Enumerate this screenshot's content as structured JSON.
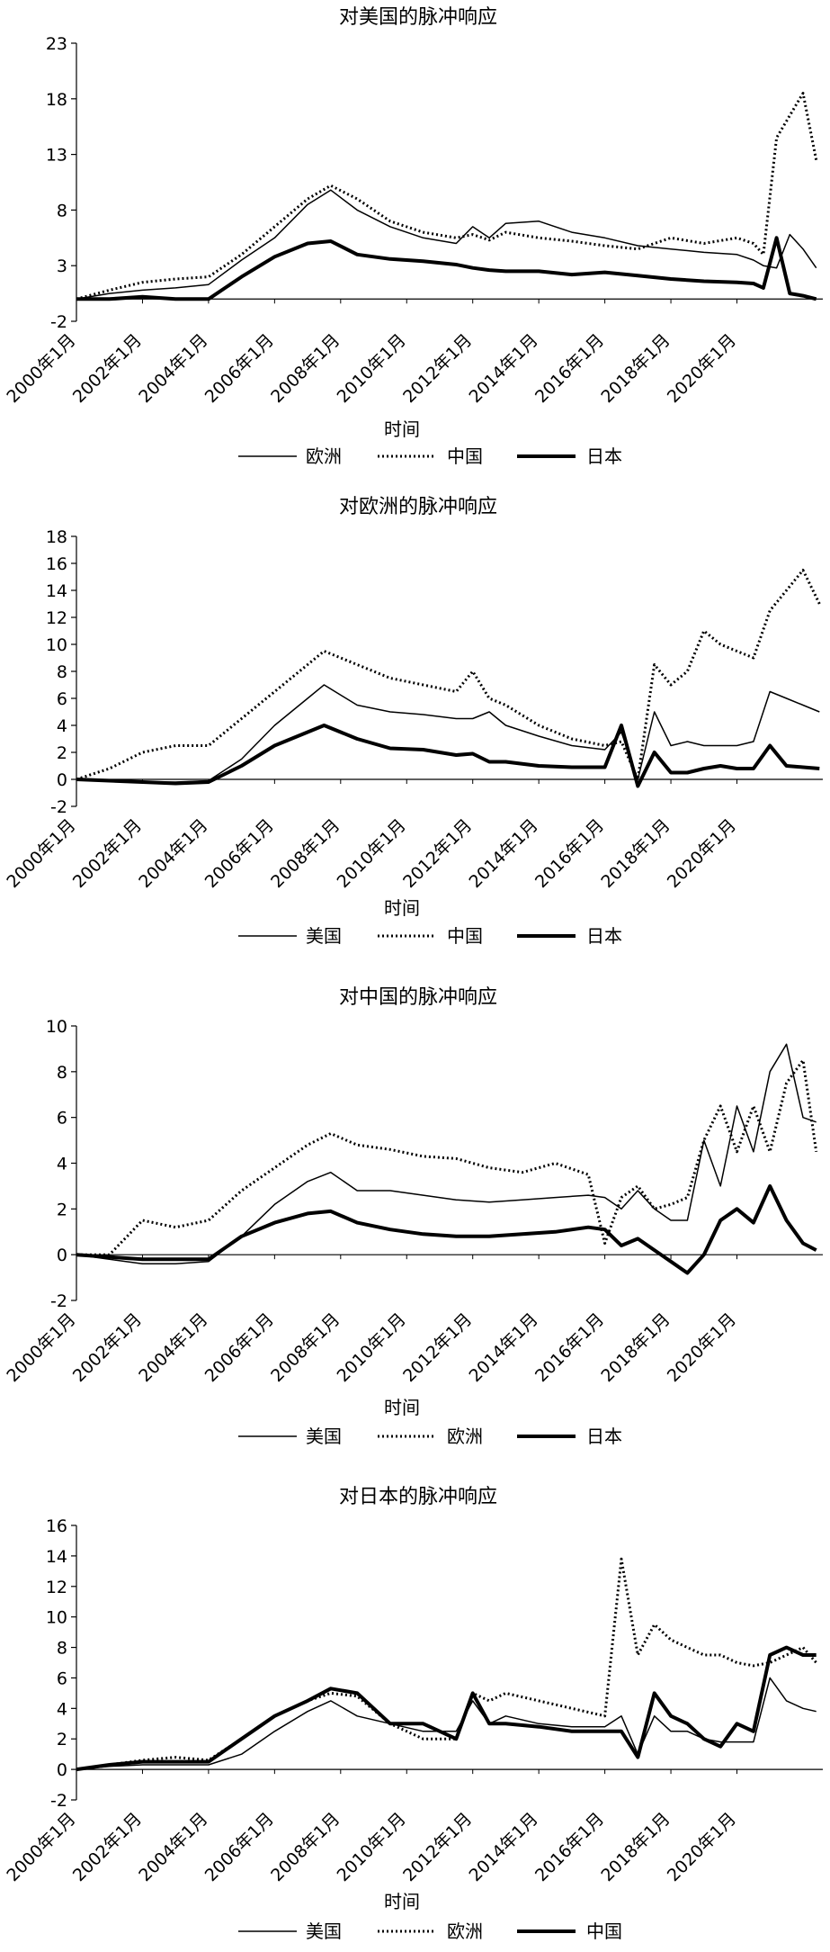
{
  "xaxis_ticks": [
    "2000年1月",
    "2002年1月",
    "2004年1月",
    "2006年1月",
    "2008年1月",
    "2010年1月",
    "2012年1月",
    "2014年1月",
    "2016年1月",
    "2018年1月",
    "2020年1月"
  ],
  "xlabel": "时间",
  "colors": {
    "line": "#000000"
  },
  "chart_data": [
    {
      "type": "line",
      "title": "对美国的脉冲响应",
      "xlabel": "时间",
      "ylabel": "",
      "ylim": [
        -2,
        23
      ],
      "yticks": [
        -2,
        3,
        8,
        13,
        18,
        23
      ],
      "grid": false,
      "legend": "bottom",
      "x": [
        2000.0,
        2001.0,
        2002.0,
        2003.0,
        2004.0,
        2005.0,
        2006.0,
        2007.0,
        2007.7,
        2008.5,
        2009.5,
        2010.5,
        2011.5,
        2012.0,
        2012.5,
        2013.0,
        2014.0,
        2015.0,
        2016.0,
        2017.0,
        2018.0,
        2019.0,
        2020.0,
        2020.5,
        2020.8,
        2021.2,
        2021.6,
        2022.0,
        2022.4
      ],
      "series": [
        {
          "name": "欧洲",
          "style": "thin",
          "values": [
            0.0,
            0.5,
            0.8,
            1.0,
            1.3,
            3.5,
            5.5,
            8.5,
            9.8,
            8.0,
            6.5,
            5.5,
            5.0,
            6.5,
            5.5,
            6.8,
            7.0,
            6.0,
            5.5,
            4.8,
            4.5,
            4.2,
            4.0,
            3.5,
            3.0,
            2.8,
            5.8,
            4.5,
            2.8
          ]
        },
        {
          "name": "中国",
          "style": "dotted",
          "values": [
            0.0,
            0.8,
            1.5,
            1.8,
            2.0,
            4.0,
            6.5,
            9.0,
            10.2,
            9.0,
            7.0,
            6.0,
            5.5,
            5.8,
            5.3,
            6.0,
            5.5,
            5.2,
            4.8,
            4.5,
            5.5,
            5.0,
            5.5,
            5.0,
            4.0,
            14.5,
            16.5,
            18.5,
            12.5
          ]
        },
        {
          "name": "日本",
          "style": "thick",
          "values": [
            0.0,
            0.0,
            0.2,
            0.0,
            0.0,
            2.0,
            3.8,
            5.0,
            5.2,
            4.0,
            3.6,
            3.4,
            3.1,
            2.8,
            2.6,
            2.5,
            2.5,
            2.2,
            2.4,
            2.1,
            1.8,
            1.6,
            1.5,
            1.4,
            1.0,
            5.5,
            0.5,
            0.3,
            0.0
          ]
        }
      ]
    },
    {
      "type": "line",
      "title": "对欧洲的脉冲响应",
      "xlabel": "时间",
      "ylabel": "",
      "ylim": [
        -2,
        18
      ],
      "yticks": [
        -2,
        0,
        2,
        4,
        6,
        8,
        10,
        12,
        14,
        16,
        18
      ],
      "grid": false,
      "legend": "bottom",
      "x": [
        2000.0,
        2001.0,
        2002.0,
        2003.0,
        2004.0,
        2005.0,
        2006.0,
        2007.0,
        2007.5,
        2008.5,
        2009.5,
        2010.5,
        2011.5,
        2012.0,
        2012.5,
        2013.0,
        2014.0,
        2015.0,
        2016.0,
        2016.5,
        2017.0,
        2017.5,
        2018.0,
        2018.5,
        2019.0,
        2019.5,
        2020.0,
        2020.5,
        2021.0,
        2021.5,
        2022.0,
        2022.5
      ],
      "series": [
        {
          "name": "美国",
          "style": "thin",
          "values": [
            0.0,
            -0.1,
            -0.2,
            -0.2,
            -0.1,
            1.5,
            4.0,
            6.0,
            7.0,
            5.5,
            5.0,
            4.8,
            4.5,
            4.5,
            5.0,
            4.0,
            3.2,
            2.5,
            2.2,
            3.5,
            0.0,
            5.0,
            2.5,
            2.8,
            2.5,
            2.5,
            2.5,
            2.8,
            6.5,
            6.0,
            5.5,
            5.0
          ]
        },
        {
          "name": "中国",
          "style": "dotted",
          "values": [
            0.0,
            0.8,
            2.0,
            2.5,
            2.5,
            4.5,
            6.5,
            8.5,
            9.5,
            8.5,
            7.5,
            7.0,
            6.5,
            8.0,
            6.0,
            5.5,
            4.0,
            3.0,
            2.5,
            2.8,
            0.0,
            8.5,
            7.0,
            8.0,
            11.0,
            10.0,
            9.5,
            9.0,
            12.5,
            14.0,
            15.5,
            13.0
          ]
        },
        {
          "name": "日本",
          "style": "thick",
          "values": [
            0.0,
            -0.1,
            -0.2,
            -0.3,
            -0.2,
            1.0,
            2.5,
            3.5,
            4.0,
            3.0,
            2.3,
            2.2,
            1.8,
            1.9,
            1.3,
            1.3,
            1.0,
            0.9,
            0.9,
            4.0,
            -0.5,
            2.0,
            0.5,
            0.5,
            0.8,
            1.0,
            0.8,
            0.8,
            2.5,
            1.0,
            0.9,
            0.8
          ]
        }
      ]
    },
    {
      "type": "line",
      "title": "对中国的脉冲响应",
      "xlabel": "时间",
      "ylabel": "",
      "ylim": [
        -2,
        10
      ],
      "yticks": [
        -2,
        0,
        2,
        4,
        6,
        8,
        10
      ],
      "grid": false,
      "legend": "bottom",
      "x": [
        2000.0,
        2001.0,
        2002.0,
        2003.0,
        2004.0,
        2005.0,
        2006.0,
        2007.0,
        2007.7,
        2008.5,
        2009.5,
        2010.5,
        2011.5,
        2012.5,
        2013.5,
        2014.5,
        2015.5,
        2016.0,
        2016.5,
        2017.0,
        2017.5,
        2018.0,
        2018.5,
        2019.0,
        2019.5,
        2020.0,
        2020.5,
        2021.0,
        2021.5,
        2022.0,
        2022.4
      ],
      "series": [
        {
          "name": "美国",
          "style": "thin",
          "values": [
            0.0,
            -0.2,
            -0.4,
            -0.4,
            -0.3,
            0.8,
            2.2,
            3.2,
            3.6,
            2.8,
            2.8,
            2.6,
            2.4,
            2.3,
            2.4,
            2.5,
            2.6,
            2.5,
            2.0,
            2.8,
            2.0,
            1.5,
            1.5,
            5.0,
            3.0,
            6.5,
            4.5,
            8.0,
            9.2,
            6.0,
            5.8
          ]
        },
        {
          "name": "欧洲",
          "style": "dotted",
          "values": [
            0.0,
            0.0,
            1.5,
            1.2,
            1.5,
            2.8,
            3.8,
            4.8,
            5.3,
            4.8,
            4.6,
            4.3,
            4.2,
            3.8,
            3.6,
            4.0,
            3.5,
            0.5,
            2.5,
            3.0,
            2.0,
            2.2,
            2.5,
            5.0,
            6.5,
            4.5,
            6.5,
            4.5,
            7.5,
            8.5,
            4.5
          ]
        },
        {
          "name": "日本",
          "style": "thick",
          "values": [
            0.0,
            -0.1,
            -0.2,
            -0.2,
            -0.2,
            0.8,
            1.4,
            1.8,
            1.9,
            1.4,
            1.1,
            0.9,
            0.8,
            0.8,
            0.9,
            1.0,
            1.2,
            1.1,
            0.4,
            0.7,
            0.2,
            -0.3,
            -0.8,
            0.0,
            1.5,
            2.0,
            1.4,
            3.0,
            1.5,
            0.5,
            0.2
          ]
        }
      ]
    },
    {
      "type": "line",
      "title": "对日本的脉冲响应",
      "xlabel": "时间",
      "ylabel": "",
      "ylim": [
        -2,
        16
      ],
      "yticks": [
        -2,
        0,
        2,
        4,
        6,
        8,
        10,
        12,
        14,
        16
      ],
      "grid": false,
      "legend": "bottom",
      "x": [
        2000.0,
        2001.0,
        2002.0,
        2003.0,
        2004.0,
        2005.0,
        2006.0,
        2007.0,
        2007.7,
        2008.5,
        2009.5,
        2010.5,
        2011.5,
        2012.0,
        2012.5,
        2013.0,
        2014.0,
        2015.0,
        2016.0,
        2016.5,
        2017.0,
        2017.5,
        2018.0,
        2018.5,
        2019.0,
        2019.5,
        2020.0,
        2020.5,
        2021.0,
        2021.5,
        2022.0,
        2022.4
      ],
      "series": [
        {
          "name": "美国",
          "style": "thin",
          "values": [
            0.0,
            0.2,
            0.3,
            0.3,
            0.3,
            1.0,
            2.5,
            3.8,
            4.5,
            3.5,
            3.0,
            2.5,
            2.5,
            4.5,
            3.0,
            3.5,
            3.0,
            2.8,
            2.8,
            3.5,
            1.0,
            3.5,
            2.5,
            2.5,
            2.0,
            1.8,
            1.8,
            1.8,
            6.0,
            4.5,
            4.0,
            3.8
          ]
        },
        {
          "name": "欧洲",
          "style": "dotted",
          "values": [
            0.0,
            0.3,
            0.6,
            0.8,
            0.6,
            2.0,
            3.5,
            4.5,
            5.0,
            4.8,
            3.0,
            2.0,
            2.0,
            5.0,
            4.5,
            5.0,
            4.5,
            4.0,
            3.5,
            13.8,
            7.5,
            9.5,
            8.5,
            8.0,
            7.5,
            7.5,
            7.0,
            6.8,
            7.0,
            7.5,
            8.0,
            7.0
          ]
        },
        {
          "name": "中国",
          "style": "thick",
          "values": [
            0.0,
            0.3,
            0.5,
            0.5,
            0.5,
            2.0,
            3.5,
            4.5,
            5.3,
            5.0,
            3.0,
            3.0,
            2.0,
            5.0,
            3.0,
            3.0,
            2.8,
            2.5,
            2.5,
            2.5,
            0.8,
            5.0,
            3.5,
            3.0,
            2.0,
            1.5,
            3.0,
            2.5,
            7.5,
            8.0,
            7.5,
            7.5
          ]
        }
      ]
    }
  ]
}
